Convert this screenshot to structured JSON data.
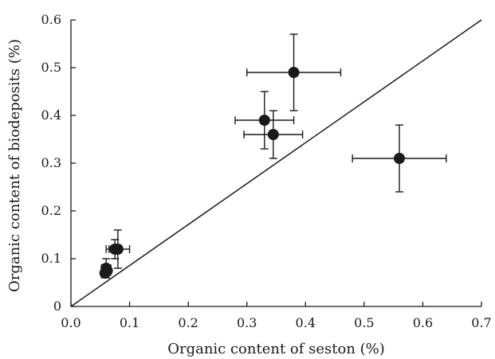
{
  "chart_data": {
    "type": "scatter",
    "xlabel": "Organic content of seston (%)",
    "ylabel": "Organic content of biodeposits (%)",
    "xlim": [
      0.0,
      0.7
    ],
    "ylim": [
      0,
      0.6
    ],
    "x_ticks": [
      0.0,
      0.1,
      0.2,
      0.3,
      0.4,
      0.5,
      0.6,
      0.7
    ],
    "x_tick_labels": [
      "0.0",
      "0.1",
      "0.2",
      "0.3",
      "0.4",
      "0.5",
      "0.6",
      "0.7"
    ],
    "y_ticks": [
      0,
      0.1,
      0.2,
      0.3,
      0.4,
      0.5,
      0.6
    ],
    "y_tick_labels": [
      "0",
      "0.1",
      "0.2",
      "0.3",
      "0.4",
      "0.5",
      "0.6"
    ],
    "grid": false,
    "reference_line": {
      "from": [
        0,
        0
      ],
      "to": [
        0.7,
        0.6
      ]
    },
    "points": [
      {
        "x": 0.38,
        "y": 0.49,
        "x_err": 0.08,
        "y_err": 0.08
      },
      {
        "x": 0.33,
        "y": 0.39,
        "x_err": 0.05,
        "y_err": 0.06
      },
      {
        "x": 0.345,
        "y": 0.36,
        "x_err": 0.05,
        "y_err": 0.05
      },
      {
        "x": 0.56,
        "y": 0.31,
        "x_err": 0.08,
        "y_err": 0.07
      },
      {
        "x": 0.08,
        "y": 0.12,
        "x_err": 0.02,
        "y_err": 0.04
      },
      {
        "x": 0.075,
        "y": 0.12,
        "x_err": 0.01,
        "y_err": 0.02
      },
      {
        "x": 0.06,
        "y": 0.08,
        "x_err": 0.008,
        "y_err": 0.02
      },
      {
        "x": 0.058,
        "y": 0.07,
        "x_err": 0.006,
        "y_err": 0.01
      },
      {
        "x": 0.062,
        "y": 0.075,
        "x_err": 0.005,
        "y_err": 0.01
      }
    ]
  }
}
